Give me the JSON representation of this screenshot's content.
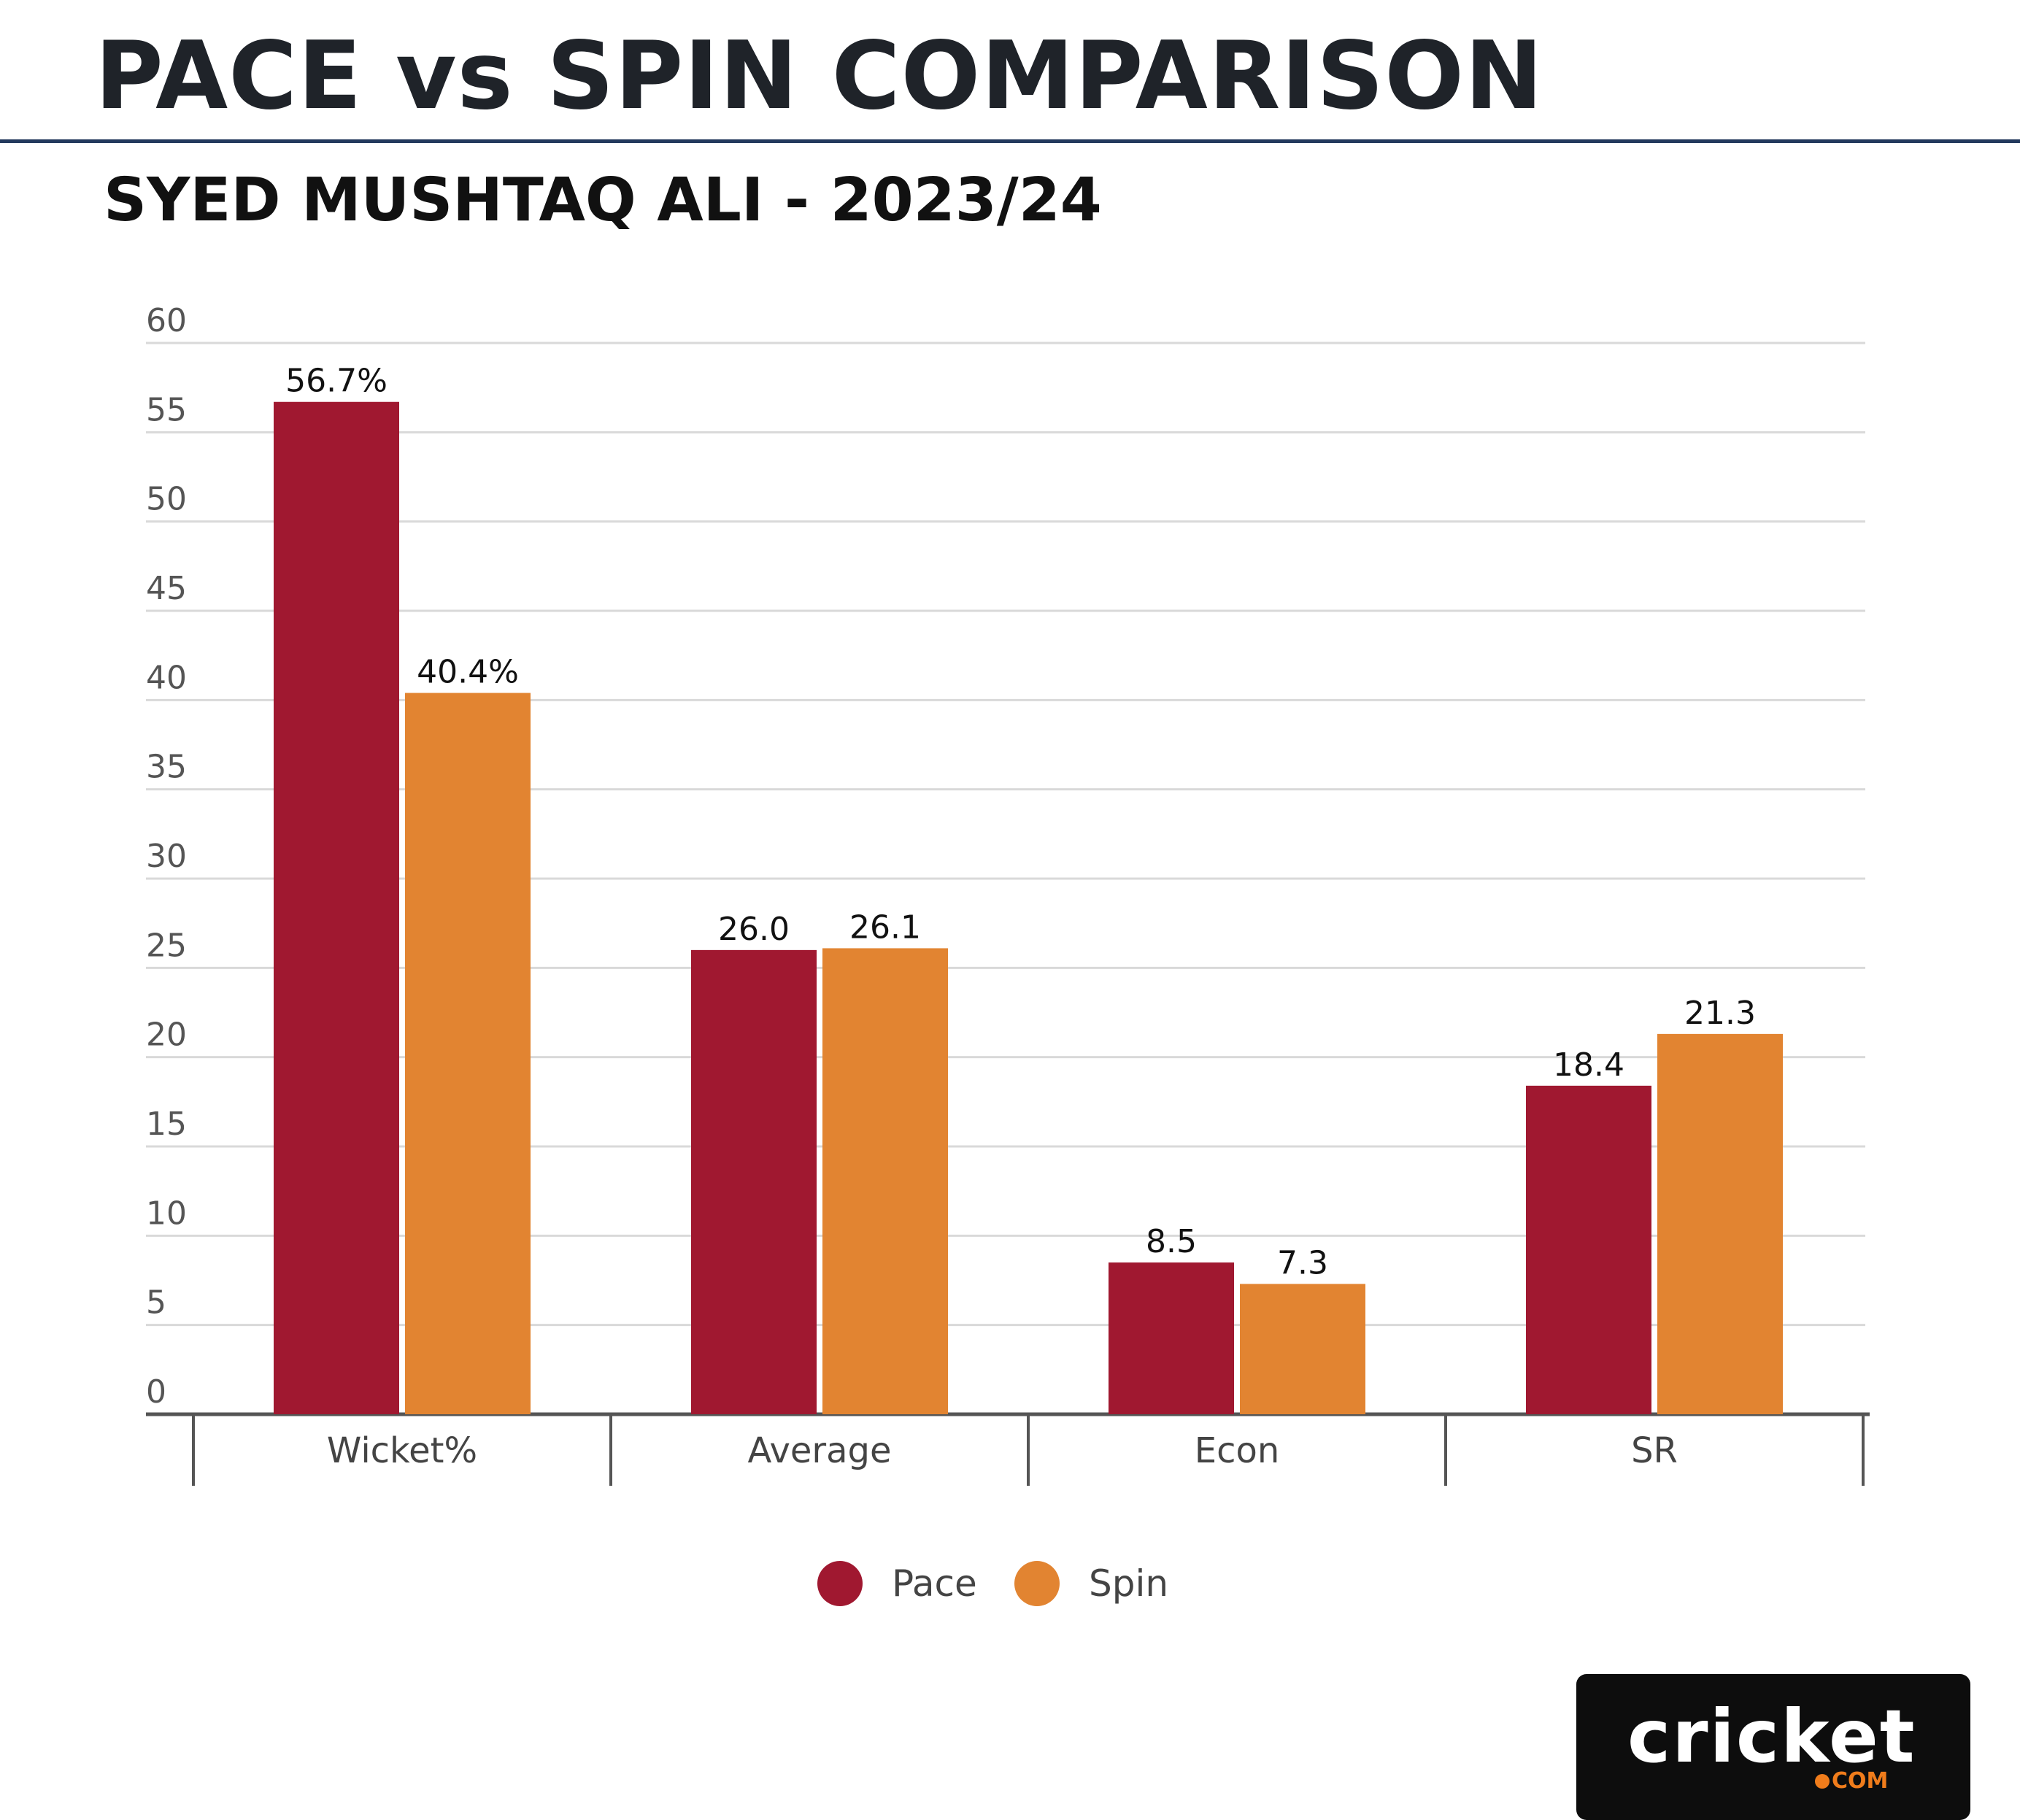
{
  "header": {
    "title": "PACE vs SPIN COMPARISON",
    "subtitle": "SYED MUSHTAQ ALI - 2023/24"
  },
  "chart_data": {
    "type": "bar",
    "categories": [
      "Wicket%",
      "Average",
      "Econ",
      "SR"
    ],
    "series": [
      {
        "name": "Pace",
        "color": "#a01830",
        "values": [
          56.7,
          26.0,
          8.5,
          18.4
        ],
        "labels": [
          "56.7%",
          "26.0",
          "8.5",
          "18.4"
        ]
      },
      {
        "name": "Spin",
        "color": "#e28431",
        "values": [
          40.4,
          26.1,
          7.3,
          21.3
        ],
        "labels": [
          "40.4%",
          "26.1",
          "7.3",
          "21.3"
        ]
      }
    ],
    "yticks": [
      0,
      5,
      10,
      15,
      20,
      25,
      30,
      35,
      40,
      45,
      50,
      55,
      60
    ],
    "ylim": [
      0,
      60
    ],
    "grid": true,
    "legend_position": "bottom-center",
    "title": "PACE vs SPIN COMPARISON",
    "subtitle": "SYED MUSHTAQ ALI - 2023/24",
    "xlabel": "",
    "ylabel": ""
  },
  "legend": {
    "items": [
      {
        "label": "Pace",
        "color": "#a01830"
      },
      {
        "label": "Spin",
        "color": "#e28431"
      }
    ]
  },
  "logo": {
    "name": "cricket",
    "suffix": "COM"
  }
}
